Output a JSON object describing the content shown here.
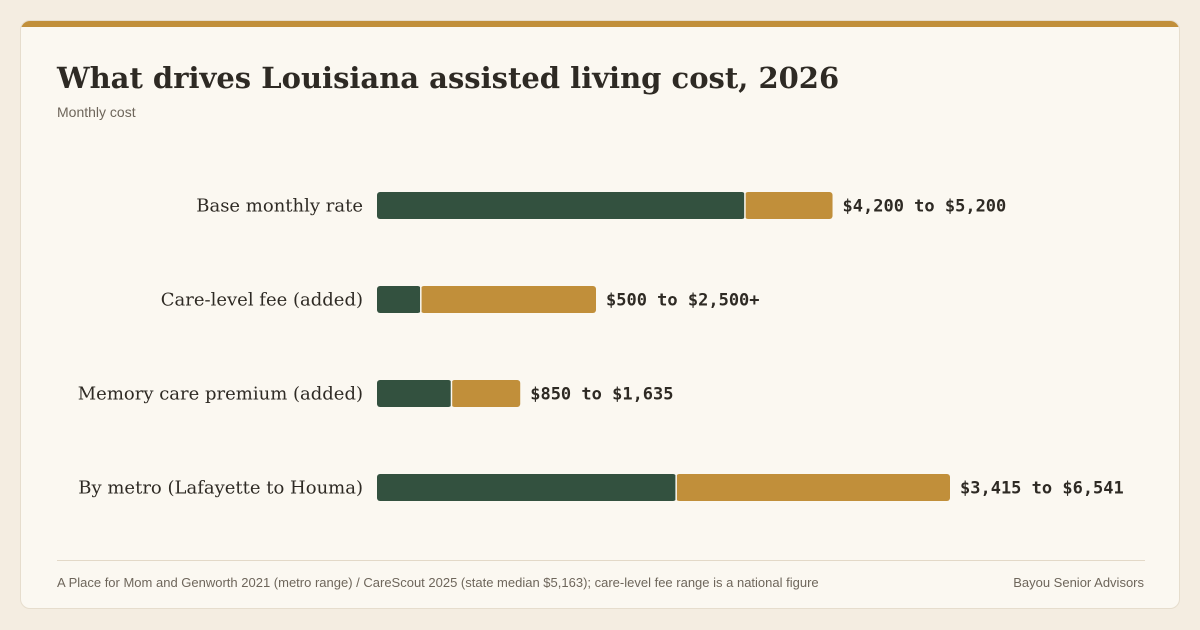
{
  "header": {
    "title": "What drives Louisiana assisted living cost, 2026",
    "subtitle": "Monthly cost"
  },
  "footer": {
    "source": "A Place for Mom and Genworth 2021 (metro range) / CareScout 2025 (state median $5,163); care-level fee range is a national figure",
    "brand": "Bayou Senior Advisors"
  },
  "colors": {
    "low": "#33513f",
    "range": "#c18f3a",
    "accent": "#c18f3a"
  },
  "chart_data": {
    "type": "bar",
    "orientation": "horizontal",
    "stacked": true,
    "categories": [
      "Base monthly rate",
      "Care-level fee (added)",
      "Memory care premium (added)",
      "By metro (Lafayette to Houma)"
    ],
    "low": [
      4200,
      500,
      850,
      3415
    ],
    "high": [
      5200,
      2500,
      1635,
      6541
    ],
    "labels": [
      "$4,200 to $5,200",
      "$500 to $2,500+",
      "$850 to $1,635",
      "$3,415 to $6,541"
    ],
    "xlim": [
      0,
      6541
    ],
    "grid": false,
    "legend": "none"
  }
}
